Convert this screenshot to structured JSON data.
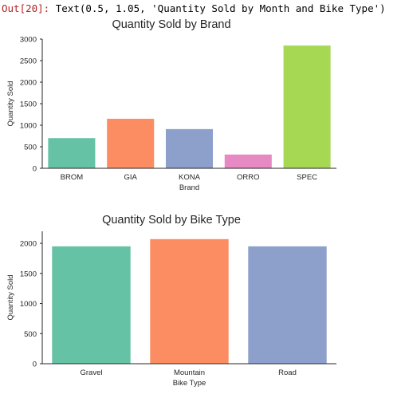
{
  "output": {
    "prompt": "Out[20]:",
    "text": "Text(0.5, 1.05, 'Quantity Sold by Month and Bike Type')"
  },
  "chart_data": [
    {
      "type": "bar",
      "title": "Quantity Sold by Brand",
      "xlabel": "Brand",
      "ylabel": "Quantity Sold",
      "categories": [
        "BROM",
        "GIA",
        "KONA",
        "ORRO",
        "SPEC"
      ],
      "values": [
        700,
        1150,
        910,
        320,
        2850
      ],
      "colors": [
        "#66c2a5",
        "#fc8d62",
        "#8da0cb",
        "#e78ac3",
        "#a6d854"
      ],
      "ylim": [
        0,
        3000
      ],
      "yticks": [
        0,
        500,
        1000,
        1500,
        2000,
        2500,
        3000
      ],
      "grid": false
    },
    {
      "type": "bar",
      "title": "Quantity Sold by Bike Type",
      "xlabel": "Bike Type",
      "ylabel": "Quantity Sold",
      "categories": [
        "Gravel",
        "Mountain",
        "Road"
      ],
      "values": [
        1950,
        2070,
        1950
      ],
      "colors": [
        "#66c2a5",
        "#fc8d62",
        "#8da0cb"
      ],
      "ylim": [
        0,
        2200
      ],
      "yticks": [
        0,
        500,
        1000,
        1500,
        2000
      ],
      "grid": false
    }
  ]
}
